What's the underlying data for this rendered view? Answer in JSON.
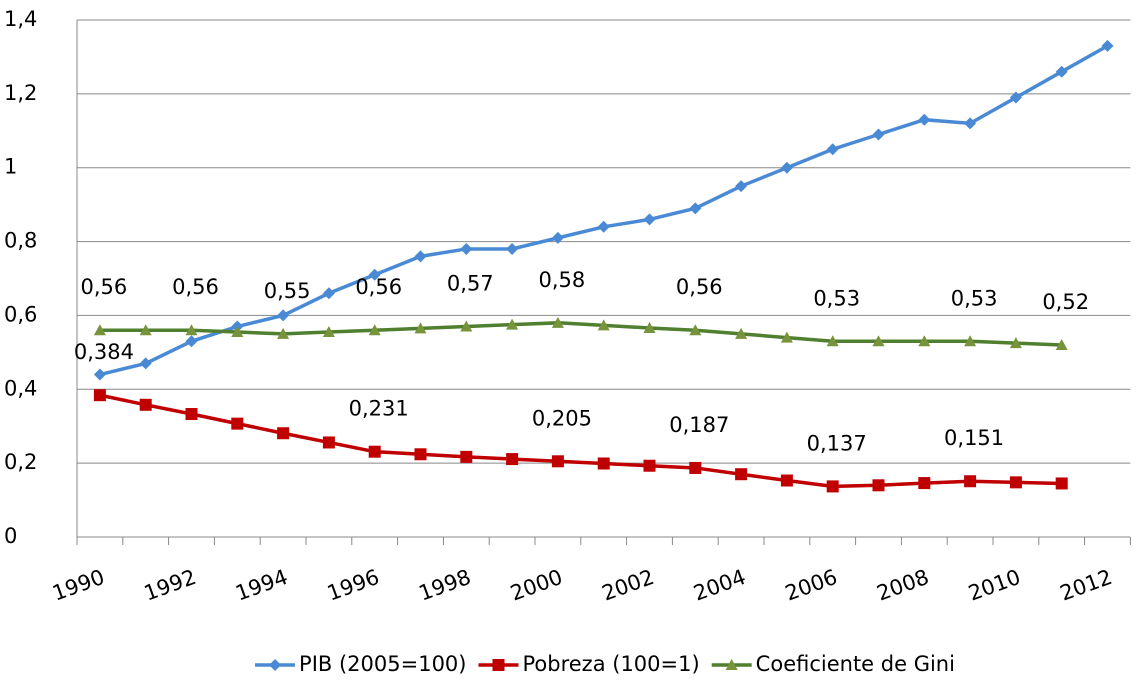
{
  "chart_data": {
    "type": "line",
    "categories": [
      "1990",
      null,
      "1992",
      null,
      "1994",
      null,
      "1996",
      null,
      "1998",
      null,
      "2000",
      null,
      "2002",
      null,
      "2004",
      null,
      "2006",
      null,
      "2008",
      null,
      "2010",
      null,
      "2012"
    ],
    "series": [
      {
        "name": "PIB (2005=100)",
        "color": "#4a8ad4",
        "marker": "diamond",
        "values": [
          0.44,
          0.47,
          0.53,
          0.57,
          0.6,
          0.66,
          0.71,
          0.76,
          0.78,
          0.78,
          0.81,
          0.84,
          0.86,
          0.89,
          0.95,
          1.0,
          1.05,
          1.09,
          1.13,
          1.12,
          1.19,
          1.26,
          1.33
        ]
      },
      {
        "name": "Pobreza (100=1)",
        "color": "#c00000",
        "marker": "square",
        "values": [
          0.384,
          0.358,
          0.333,
          0.307,
          0.281,
          0.256,
          0.231,
          0.224,
          0.217,
          0.211,
          0.205,
          0.199,
          0.193,
          0.187,
          0.17,
          0.153,
          0.137,
          0.14,
          0.146,
          0.151,
          0.148,
          0.145,
          null
        ],
        "value_labels": [
          "0,384",
          null,
          null,
          null,
          null,
          null,
          "0,231",
          null,
          null,
          null,
          "0,205",
          null,
          null,
          "0,187",
          null,
          null,
          "0,137",
          null,
          null,
          "0,151",
          null,
          null,
          null
        ]
      },
      {
        "name": "Coeficiente de Gini",
        "color": "#4f7f2f",
        "marker": "triangle",
        "values": [
          0.56,
          0.56,
          0.56,
          0.555,
          0.55,
          0.555,
          0.56,
          0.565,
          0.57,
          0.575,
          0.58,
          0.573,
          0.566,
          0.56,
          0.55,
          0.54,
          0.53,
          0.53,
          0.53,
          0.53,
          0.525,
          0.52,
          null
        ],
        "value_labels": [
          "0,56",
          null,
          "0,56",
          null,
          "0,55",
          null,
          "0,56",
          null,
          "0,57",
          null,
          "0,58",
          null,
          null,
          "0,56",
          null,
          null,
          "0,53",
          null,
          null,
          "0,53",
          null,
          "0,52",
          null
        ]
      }
    ],
    "ylim": [
      0,
      1.4
    ],
    "yticks": [
      0,
      {
        "value": 0.2,
        "label": "0,2"
      },
      {
        "value": 0.4,
        "label": "0,4"
      },
      {
        "value": 0.6,
        "label": "0,6"
      },
      {
        "value": 0.8,
        "label": "0,8"
      },
      1,
      {
        "value": 1.2,
        "label": "1,2"
      },
      {
        "value": 1.4,
        "label": "1,4"
      }
    ],
    "grid": true,
    "legend": "bottom"
  }
}
